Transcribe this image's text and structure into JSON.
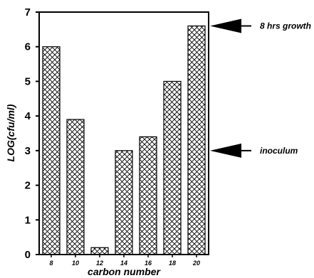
{
  "chart_data": {
    "type": "bar",
    "categories": [
      "8",
      "10",
      "12",
      "14",
      "16",
      "18",
      "20"
    ],
    "values": [
      6.0,
      3.9,
      0.2,
      3.0,
      3.4,
      5.0,
      6.6
    ],
    "xlabel": "carbon number",
    "ylabel": "LOG(cfu/ml)",
    "ylim": [
      0,
      7
    ],
    "yticks": [
      "0",
      "1",
      "2",
      "3",
      "4",
      "5",
      "6",
      "7"
    ],
    "grid": false,
    "bar_fill": "crosshatch",
    "annotations": [
      {
        "label": "8 hrs growth",
        "y": 6.6
      },
      {
        "label": "inoculum",
        "y": 3.0
      }
    ]
  },
  "colors": {
    "ink": "#000000",
    "background": "#ffffff"
  }
}
